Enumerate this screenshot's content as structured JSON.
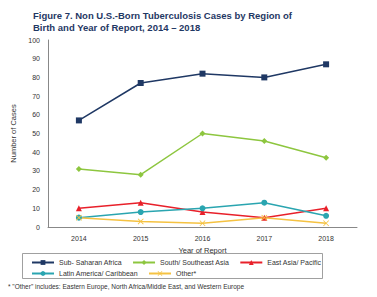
{
  "chart_data": {
    "type": "line",
    "title": "Figure 7. Non U.S.-Born Tuberculosis Cases by Region of\nBirth and Year of Report, 2014 – 2018",
    "x_label": "Year of Report",
    "y_label": "Number of Cases",
    "categories": [
      "2014",
      "2015",
      "2016",
      "2017",
      "2018"
    ],
    "series": [
      {
        "name": "Sub- Saharan Africa",
        "color": "#1f3864",
        "marker": "square",
        "values": [
          57,
          77,
          82,
          80,
          87
        ]
      },
      {
        "name": "South/ Southeast Asia",
        "color": "#8dc63f",
        "marker": "diamond",
        "values": [
          31,
          28,
          50,
          46,
          37
        ]
      },
      {
        "name": "East Asia/ Pacific",
        "color": "#e8202a",
        "marker": "triangle",
        "values": [
          10,
          13,
          8,
          5,
          10
        ]
      },
      {
        "name": "Latin America/ Caribbean",
        "color": "#2aa5b0",
        "marker": "circle",
        "values": [
          5,
          8,
          10,
          13,
          6
        ]
      },
      {
        "name": "Other*",
        "color": "#f5c242",
        "marker": "x",
        "values": [
          5,
          3,
          2,
          5,
          2
        ]
      }
    ],
    "ylim": [
      0,
      100
    ],
    "yticks": [
      0,
      10,
      20,
      30,
      40,
      50,
      60,
      70,
      80,
      90,
      100
    ],
    "grid": false,
    "legend": "bottom",
    "footnote": "* \"Other\" includes: Eastern Europe, North Africa/Middle East, and Western Europe"
  }
}
